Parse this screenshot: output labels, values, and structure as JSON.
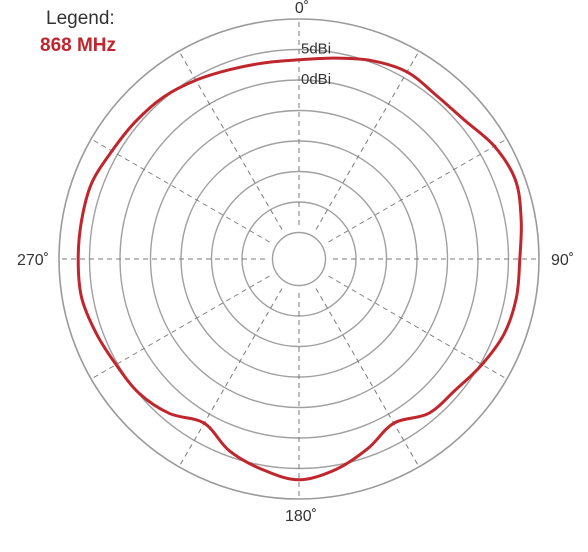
{
  "chart_data": {
    "type": "polar-line",
    "legend": {
      "title": "Legend:",
      "placement": "top-left"
    },
    "angular_ticks": [
      {
        "angle": 0,
        "label": "0˚"
      },
      {
        "angle": 90,
        "label": "90˚"
      },
      {
        "angle": 180,
        "label": "180˚"
      },
      {
        "angle": 270,
        "label": "270˚"
      }
    ],
    "radial_labels": [
      {
        "label": "5dBi"
      },
      {
        "label": "0dBi"
      }
    ],
    "radial_ring_count": 7,
    "spoke_angles": [
      0,
      30,
      60,
      90,
      120,
      150,
      180,
      210,
      240,
      270,
      300,
      330
    ],
    "series": [
      {
        "name": "868 MHz",
        "color": "#c0262d",
        "points": [
          {
            "angle": 0,
            "value": 0.83
          },
          {
            "angle": 10,
            "value": 0.85
          },
          {
            "angle": 20,
            "value": 0.88
          },
          {
            "angle": 30,
            "value": 0.9
          },
          {
            "angle": 40,
            "value": 0.89
          },
          {
            "angle": 50,
            "value": 0.9
          },
          {
            "angle": 60,
            "value": 0.94
          },
          {
            "angle": 70,
            "value": 0.96
          },
          {
            "angle": 80,
            "value": 0.94
          },
          {
            "angle": 90,
            "value": 0.92
          },
          {
            "angle": 100,
            "value": 0.92
          },
          {
            "angle": 110,
            "value": 0.91
          },
          {
            "angle": 120,
            "value": 0.88
          },
          {
            "angle": 130,
            "value": 0.85
          },
          {
            "angle": 140,
            "value": 0.84
          },
          {
            "angle": 150,
            "value": 0.79
          },
          {
            "angle": 160,
            "value": 0.84
          },
          {
            "angle": 170,
            "value": 0.89
          },
          {
            "angle": 180,
            "value": 0.92
          },
          {
            "angle": 190,
            "value": 0.89
          },
          {
            "angle": 200,
            "value": 0.85
          },
          {
            "angle": 210,
            "value": 0.79
          },
          {
            "angle": 220,
            "value": 0.84
          },
          {
            "angle": 230,
            "value": 0.87
          },
          {
            "angle": 240,
            "value": 0.88
          },
          {
            "angle": 250,
            "value": 0.9
          },
          {
            "angle": 260,
            "value": 0.92
          },
          {
            "angle": 270,
            "value": 0.92
          },
          {
            "angle": 280,
            "value": 0.92
          },
          {
            "angle": 290,
            "value": 0.92
          },
          {
            "angle": 300,
            "value": 0.9
          },
          {
            "angle": 310,
            "value": 0.89
          },
          {
            "angle": 320,
            "value": 0.88
          },
          {
            "angle": 330,
            "value": 0.86
          },
          {
            "angle": 340,
            "value": 0.84
          },
          {
            "angle": 350,
            "value": 0.83
          }
        ]
      }
    ]
  }
}
